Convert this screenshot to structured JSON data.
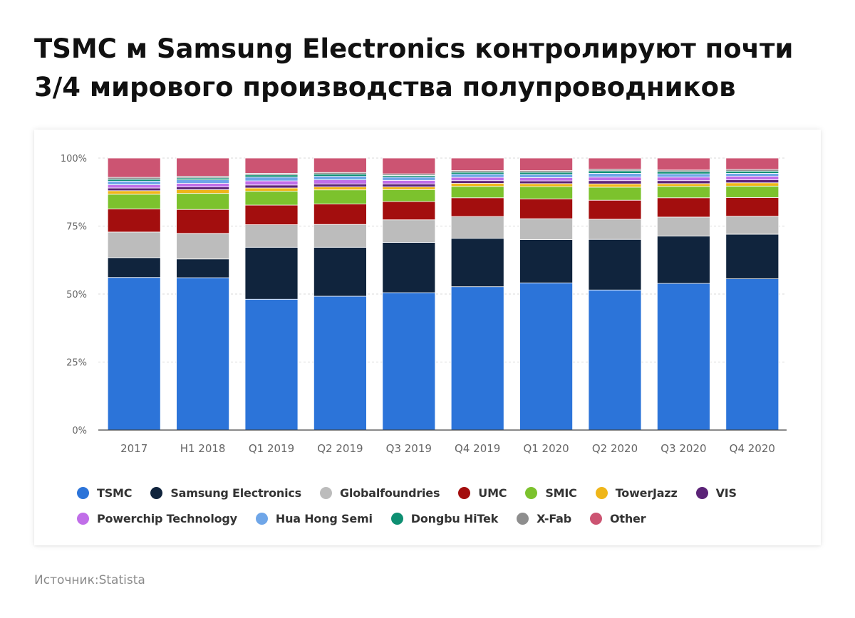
{
  "title_line1": "TSMC м Samsung Electronics контролируют почти",
  "title_line2": "3/4 мирового производства полупроводников",
  "source": "Источник:Statista",
  "chart_data": {
    "type": "bar",
    "stacked": true,
    "title": "TSMC м Samsung Electronics контролируют почти 3/4 мирового производства полупроводников",
    "xlabel": "",
    "ylabel": "",
    "ylim": [
      0,
      100
    ],
    "y_ticks": [
      "0%",
      "25%",
      "50%",
      "75%",
      "100%"
    ],
    "grid": true,
    "legend_position": "bottom",
    "categories": [
      "2017",
      "H1 2018",
      "Q1 2019",
      "Q2 2019",
      "Q3 2019",
      "Q4 2019",
      "Q1 2020",
      "Q2 2020",
      "Q3 2020",
      "Q4 2020"
    ],
    "series": [
      {
        "name": "TSMC",
        "color": "#2c74d9",
        "values": [
          56.1,
          56.0,
          48.1,
          49.2,
          50.5,
          52.7,
          54.1,
          51.5,
          53.9,
          55.6
        ]
      },
      {
        "name": "Samsung Electronics",
        "color": "#10243d",
        "values": [
          7.3,
          6.9,
          19.1,
          18.0,
          18.5,
          17.8,
          15.9,
          18.6,
          17.4,
          16.4
        ]
      },
      {
        "name": "Globalfoundries",
        "color": "#bcbcbc",
        "values": [
          9.4,
          9.4,
          8.3,
          8.4,
          8.3,
          8.0,
          7.7,
          7.4,
          7.0,
          6.6
        ]
      },
      {
        "name": "UMC",
        "color": "#a30e0e",
        "values": [
          8.5,
          8.8,
          7.2,
          7.5,
          6.7,
          6.9,
          7.3,
          7.0,
          7.1,
          6.9
        ]
      },
      {
        "name": "SMIC",
        "color": "#7cc22d",
        "values": [
          5.4,
          5.9,
          5.1,
          5.2,
          4.4,
          4.2,
          4.5,
          4.8,
          4.2,
          4.2
        ]
      },
      {
        "name": "TowerJazz",
        "color": "#efb619",
        "values": [
          1.3,
          1.4,
          1.2,
          1.1,
          1.0,
          1.1,
          1.1,
          1.2,
          1.0,
          1.2
        ]
      },
      {
        "name": "VIS",
        "color": "#5b2377",
        "values": [
          1.0,
          1.0,
          1.1,
          1.1,
          1.1,
          1.0,
          1.0,
          1.2,
          1.1,
          1.1
        ]
      },
      {
        "name": "Powerchip Technology",
        "color": "#c06ee8",
        "values": [
          1.2,
          1.3,
          1.5,
          1.5,
          1.3,
          1.2,
          1.2,
          1.3,
          1.3,
          1.3
        ]
      },
      {
        "name": "Hua Hong Semi",
        "color": "#6fa6e8",
        "values": [
          1.3,
          1.3,
          1.4,
          1.3,
          1.2,
          1.2,
          1.2,
          1.4,
          1.2,
          1.1
        ]
      },
      {
        "name": "Dongbu HiTek",
        "color": "#0e8f72",
        "values": [
          0.7,
          0.7,
          0.8,
          0.8,
          0.6,
          0.7,
          0.8,
          0.9,
          0.8,
          0.8
        ]
      },
      {
        "name": "X-Fab",
        "color": "#8e8e8e",
        "values": [
          0.7,
          0.6,
          0.6,
          0.6,
          0.6,
          0.6,
          0.6,
          0.6,
          0.6,
          0.6
        ]
      },
      {
        "name": "Other",
        "color": "#cc5472",
        "values": [
          7.1,
          6.7,
          5.6,
          5.3,
          5.8,
          4.6,
          4.6,
          4.1,
          4.4,
          4.2
        ]
      }
    ]
  }
}
